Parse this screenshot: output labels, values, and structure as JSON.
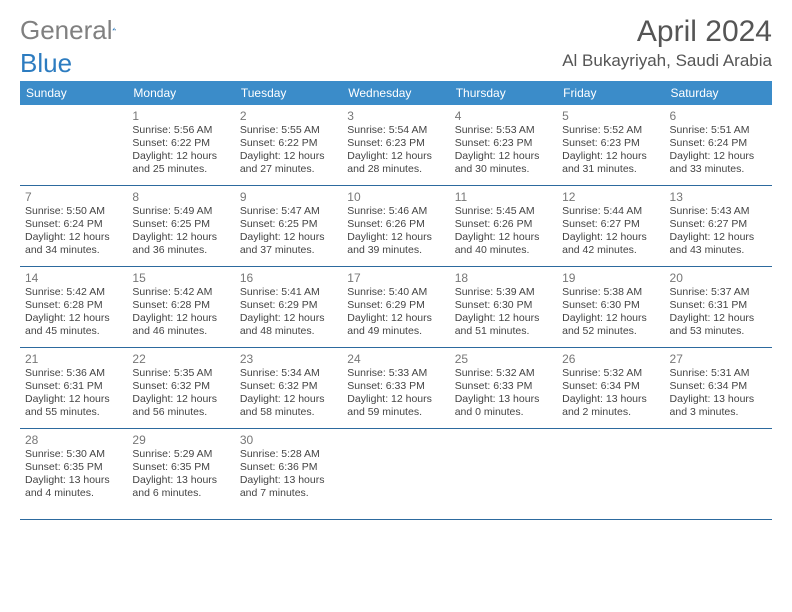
{
  "logo": {
    "gray": "General",
    "blue": "Blue"
  },
  "header": {
    "title": "April 2024",
    "location": "Al Bukayriyah, Saudi Arabia"
  },
  "colors": {
    "header_bg": "#3b8cc9",
    "divider": "#2d6a9e",
    "logo_gray": "#808080",
    "logo_blue": "#2d7cc0",
    "title_color": "#555555",
    "text_color": "#444444",
    "day_num_color": "#777777"
  },
  "day_names": [
    "Sunday",
    "Monday",
    "Tuesday",
    "Wednesday",
    "Thursday",
    "Friday",
    "Saturday"
  ],
  "weeks": [
    [
      null,
      {
        "n": "1",
        "sr": "5:56 AM",
        "ss": "6:22 PM",
        "dl": "12 hours and 25 minutes."
      },
      {
        "n": "2",
        "sr": "5:55 AM",
        "ss": "6:22 PM",
        "dl": "12 hours and 27 minutes."
      },
      {
        "n": "3",
        "sr": "5:54 AM",
        "ss": "6:23 PM",
        "dl": "12 hours and 28 minutes."
      },
      {
        "n": "4",
        "sr": "5:53 AM",
        "ss": "6:23 PM",
        "dl": "12 hours and 30 minutes."
      },
      {
        "n": "5",
        "sr": "5:52 AM",
        "ss": "6:23 PM",
        "dl": "12 hours and 31 minutes."
      },
      {
        "n": "6",
        "sr": "5:51 AM",
        "ss": "6:24 PM",
        "dl": "12 hours and 33 minutes."
      }
    ],
    [
      {
        "n": "7",
        "sr": "5:50 AM",
        "ss": "6:24 PM",
        "dl": "12 hours and 34 minutes."
      },
      {
        "n": "8",
        "sr": "5:49 AM",
        "ss": "6:25 PM",
        "dl": "12 hours and 36 minutes."
      },
      {
        "n": "9",
        "sr": "5:47 AM",
        "ss": "6:25 PM",
        "dl": "12 hours and 37 minutes."
      },
      {
        "n": "10",
        "sr": "5:46 AM",
        "ss": "6:26 PM",
        "dl": "12 hours and 39 minutes."
      },
      {
        "n": "11",
        "sr": "5:45 AM",
        "ss": "6:26 PM",
        "dl": "12 hours and 40 minutes."
      },
      {
        "n": "12",
        "sr": "5:44 AM",
        "ss": "6:27 PM",
        "dl": "12 hours and 42 minutes."
      },
      {
        "n": "13",
        "sr": "5:43 AM",
        "ss": "6:27 PM",
        "dl": "12 hours and 43 minutes."
      }
    ],
    [
      {
        "n": "14",
        "sr": "5:42 AM",
        "ss": "6:28 PM",
        "dl": "12 hours and 45 minutes."
      },
      {
        "n": "15",
        "sr": "5:42 AM",
        "ss": "6:28 PM",
        "dl": "12 hours and 46 minutes."
      },
      {
        "n": "16",
        "sr": "5:41 AM",
        "ss": "6:29 PM",
        "dl": "12 hours and 48 minutes."
      },
      {
        "n": "17",
        "sr": "5:40 AM",
        "ss": "6:29 PM",
        "dl": "12 hours and 49 minutes."
      },
      {
        "n": "18",
        "sr": "5:39 AM",
        "ss": "6:30 PM",
        "dl": "12 hours and 51 minutes."
      },
      {
        "n": "19",
        "sr": "5:38 AM",
        "ss": "6:30 PM",
        "dl": "12 hours and 52 minutes."
      },
      {
        "n": "20",
        "sr": "5:37 AM",
        "ss": "6:31 PM",
        "dl": "12 hours and 53 minutes."
      }
    ],
    [
      {
        "n": "21",
        "sr": "5:36 AM",
        "ss": "6:31 PM",
        "dl": "12 hours and 55 minutes."
      },
      {
        "n": "22",
        "sr": "5:35 AM",
        "ss": "6:32 PM",
        "dl": "12 hours and 56 minutes."
      },
      {
        "n": "23",
        "sr": "5:34 AM",
        "ss": "6:32 PM",
        "dl": "12 hours and 58 minutes."
      },
      {
        "n": "24",
        "sr": "5:33 AM",
        "ss": "6:33 PM",
        "dl": "12 hours and 59 minutes."
      },
      {
        "n": "25",
        "sr": "5:32 AM",
        "ss": "6:33 PM",
        "dl": "13 hours and 0 minutes."
      },
      {
        "n": "26",
        "sr": "5:32 AM",
        "ss": "6:34 PM",
        "dl": "13 hours and 2 minutes."
      },
      {
        "n": "27",
        "sr": "5:31 AM",
        "ss": "6:34 PM",
        "dl": "13 hours and 3 minutes."
      }
    ],
    [
      {
        "n": "28",
        "sr": "5:30 AM",
        "ss": "6:35 PM",
        "dl": "13 hours and 4 minutes."
      },
      {
        "n": "29",
        "sr": "5:29 AM",
        "ss": "6:35 PM",
        "dl": "13 hours and 6 minutes."
      },
      {
        "n": "30",
        "sr": "5:28 AM",
        "ss": "6:36 PM",
        "dl": "13 hours and 7 minutes."
      },
      null,
      null,
      null,
      null
    ]
  ],
  "labels": {
    "sunrise": "Sunrise:",
    "sunset": "Sunset:",
    "daylight": "Daylight:"
  }
}
